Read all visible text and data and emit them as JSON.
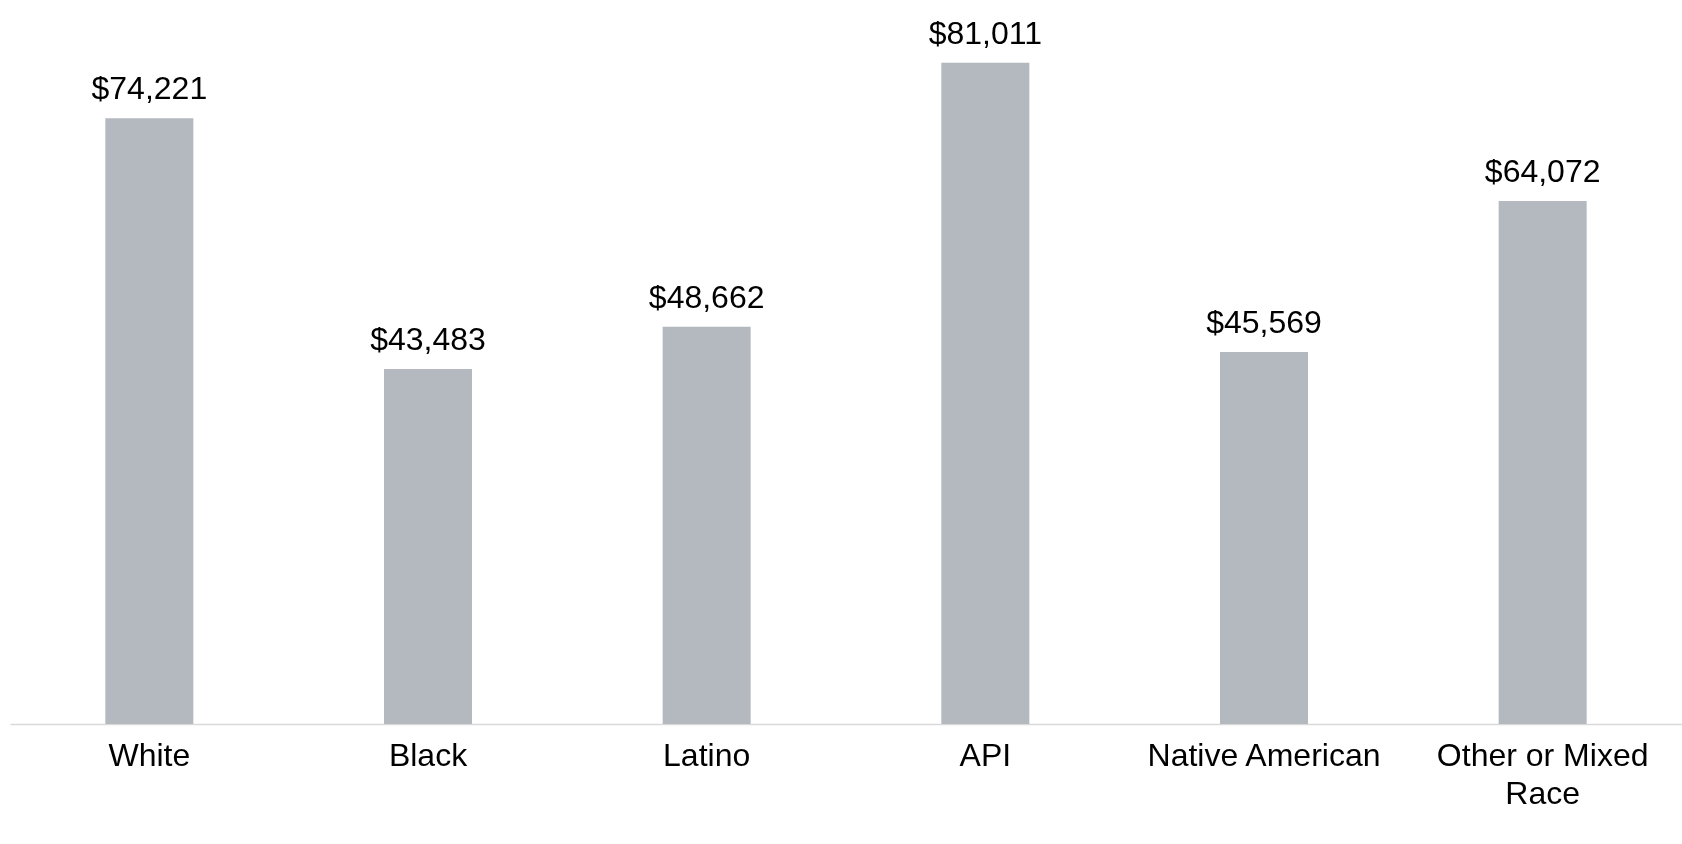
{
  "chart_data": {
    "type": "bar",
    "categories": [
      "White",
      "Black",
      "Latino",
      "API",
      "Native American",
      "Other or Mixed Race"
    ],
    "values": [
      74221,
      43483,
      48662,
      81011,
      45569,
      64072
    ],
    "value_labels": [
      "$74,221",
      "$43,483",
      "$48,662",
      "$81,011",
      "$45,569",
      "$64,072"
    ],
    "color": "#b4b8bf"
  }
}
